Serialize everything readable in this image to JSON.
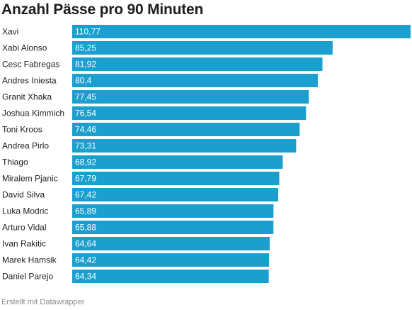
{
  "chart_data": {
    "type": "bar",
    "orientation": "horizontal",
    "title": "Anzahl Pässe pro 90 Minuten",
    "categories": [
      "Xavi",
      "Xabi Alonso",
      "Cesc Fabregas",
      "Andres Iniesta",
      "Granit Xhaka",
      "Joshua Kimmich",
      "Toni Kroos",
      "Andrea Pirlo",
      "Thiago",
      "Miralem Pjanic",
      "David Silva",
      "Luka Modric",
      "Arturo Vidal",
      "Ivan Rakitic",
      "Marek Hamsik",
      "Daniel Parejo"
    ],
    "values": [
      110.77,
      85.25,
      81.92,
      80.4,
      77.45,
      76.54,
      74.46,
      73.31,
      68.92,
      67.79,
      67.42,
      65.89,
      65.88,
      64.64,
      64.42,
      64.34
    ],
    "value_labels": [
      "110,77",
      "85,25",
      "81,92",
      "80,4",
      "77,45",
      "76,54",
      "74,46",
      "73,31",
      "68,92",
      "67,79",
      "67,42",
      "65,89",
      "65,88",
      "64,64",
      "64,42",
      "64,34"
    ],
    "xlim": [
      0,
      110.77
    ],
    "bar_color": "#1a9fce",
    "grid": false,
    "legend": "none"
  },
  "footer": "Erstellt mit Datawrapper"
}
